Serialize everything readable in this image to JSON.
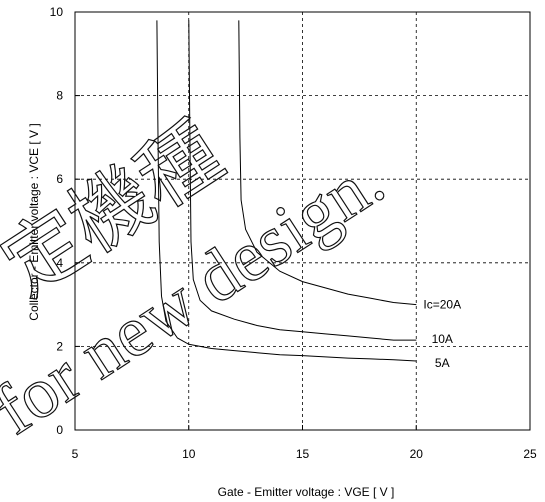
{
  "chart_data": {
    "type": "line",
    "title": "",
    "xlabel": "Gate - Emitter voltage  :  VGE  [ V ]",
    "ylabel": "Collector - Emitter voltage  :  VCE  [ V ]",
    "xlim": [
      5,
      25
    ],
    "ylim": [
      0,
      10
    ],
    "x_ticks": [
      "5",
      "10",
      "15",
      "20",
      "25"
    ],
    "y_ticks": [
      "0",
      "2",
      "4",
      "6",
      "8",
      "10"
    ],
    "grid": true,
    "series": [
      {
        "name": "Ic=20A",
        "points": [
          [
            12.2,
            9.8
          ],
          [
            12.25,
            7.0
          ],
          [
            12.3,
            5.5
          ],
          [
            12.5,
            4.8
          ],
          [
            13.0,
            4.25
          ],
          [
            14.0,
            3.8
          ],
          [
            15.0,
            3.55
          ],
          [
            16.0,
            3.4
          ],
          [
            17.0,
            3.25
          ],
          [
            18.0,
            3.15
          ],
          [
            19.0,
            3.05
          ],
          [
            20.0,
            3.0
          ]
        ]
      },
      {
        "name": "10A",
        "points": [
          [
            10.0,
            9.8
          ],
          [
            10.05,
            7.0
          ],
          [
            10.1,
            4.5
          ],
          [
            10.2,
            3.6
          ],
          [
            10.5,
            3.1
          ],
          [
            11.0,
            2.85
          ],
          [
            12.0,
            2.65
          ],
          [
            13.0,
            2.5
          ],
          [
            14.0,
            2.4
          ],
          [
            15.0,
            2.35
          ],
          [
            16.0,
            2.3
          ],
          [
            17.0,
            2.25
          ],
          [
            18.0,
            2.2
          ],
          [
            19.0,
            2.15
          ],
          [
            20.0,
            2.15
          ]
        ]
      },
      {
        "name": "5A",
        "points": [
          [
            8.6,
            9.8
          ],
          [
            8.65,
            7.0
          ],
          [
            8.7,
            4.5
          ],
          [
            8.8,
            3.2
          ],
          [
            9.0,
            2.6
          ],
          [
            9.5,
            2.2
          ],
          [
            10.0,
            2.05
          ],
          [
            11.0,
            1.95
          ],
          [
            12.0,
            1.9
          ],
          [
            13.0,
            1.85
          ],
          [
            14.0,
            1.8
          ],
          [
            15.0,
            1.78
          ],
          [
            16.0,
            1.75
          ],
          [
            17.0,
            1.72
          ],
          [
            18.0,
            1.7
          ],
          [
            19.0,
            1.68
          ],
          [
            20.0,
            1.65
          ]
        ]
      }
    ]
  },
  "watermark": {
    "line1": "定機種",
    "line2": "for new design."
  },
  "colors": {
    "curve": "#000000",
    "grid": "#000000",
    "background": "#ffffff"
  }
}
